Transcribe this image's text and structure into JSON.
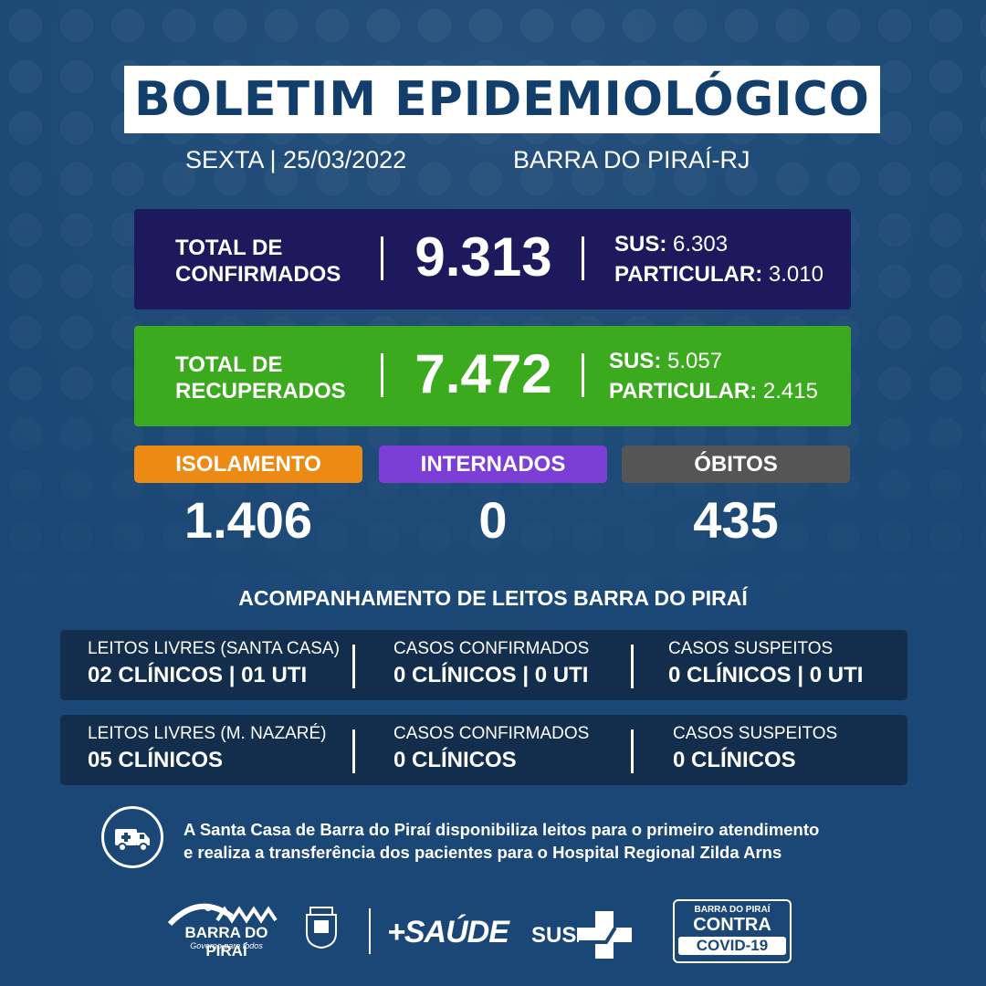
{
  "header": {
    "title": "BOLETIM EPIDEMIOLÓGICO",
    "date": "SEXTA | 25/03/2022",
    "city": "BARRA DO PIRAÍ-RJ"
  },
  "confirmed": {
    "label_line1": "TOTAL DE",
    "label_line2": "CONFIRMADOS",
    "total": "9.313",
    "sus_label": "SUS:",
    "sus_value": "6.303",
    "particular_label": "PARTICULAR:",
    "particular_value": "3.010",
    "color": "#1c1a5c"
  },
  "recovered": {
    "label_line1": "TOTAL DE",
    "label_line2": "RECUPERADOS",
    "total": "7.472",
    "sus_label": "SUS:",
    "sus_value": "5.057",
    "particular_label": "PARTICULAR:",
    "particular_value": "2.415",
    "color": "#3caa1f"
  },
  "isolamento": {
    "label": "ISOLAMENTO",
    "value": "1.406",
    "color": "#ec8a14"
  },
  "internados": {
    "label": "INTERNADOS",
    "value": "0",
    "color": "#7c3fd6"
  },
  "obitos": {
    "label": "ÓBITOS",
    "value": "435",
    "color": "#555555"
  },
  "beds": {
    "title": "ACOMPANHAMENTO DE LEITOS BARRA DO PIRAÍ",
    "rows": [
      {
        "c1_label": "LEITOS LIVRES (SANTA CASA)",
        "c1_value": "02 CLÍNICOS | 01 UTI",
        "c2_label": "CASOS CONFIRMADOS",
        "c2_value": "0 CLÍNICOS | 0 UTI",
        "c3_label": "CASOS SUSPEITOS",
        "c3_value": "0 CLÍNICOS | 0 UTI"
      },
      {
        "c1_label": "LEITOS LIVRES (M. NAZARÉ)",
        "c1_value": "05 CLÍNICOS",
        "c2_label": "CASOS CONFIRMADOS",
        "c2_value": "0 CLÍNICOS",
        "c3_label": "CASOS SUSPEITOS",
        "c3_value": "0 CLÍNICOS"
      }
    ]
  },
  "notice": {
    "icon": "ambulance-icon",
    "line1": "A Santa Casa de Barra do Piraí disponibiliza leitos para o primeiro atendimento",
    "line2": "e realiza a transferência dos pacientes para o Hospital Regional Zilda Arns"
  },
  "footer": {
    "barra_name": "BARRA DO PIRAÍ",
    "barra_tag": "Governo para todos",
    "saude": "+SAÚDE",
    "sus": "SUS",
    "covid_line1": "BARRA DO PIRAÍ",
    "covid_line2": "CONTRA",
    "covid_line3": "COVID-19"
  }
}
